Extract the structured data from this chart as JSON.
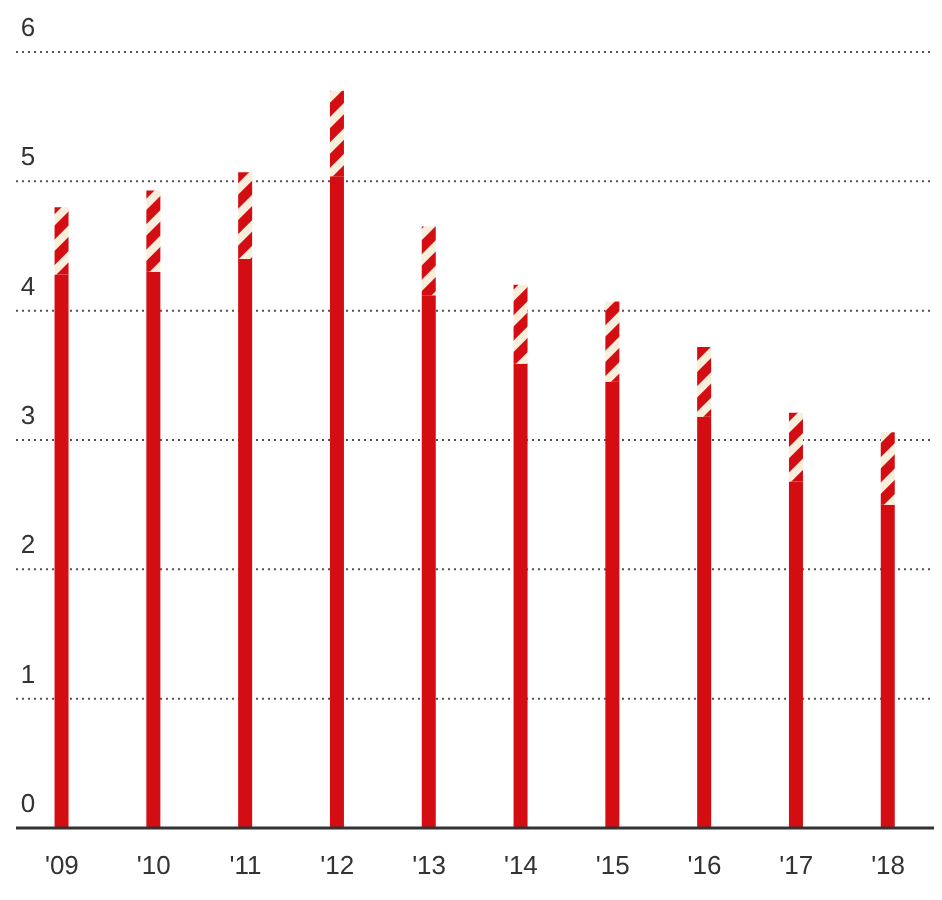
{
  "chart_data": {
    "type": "bar",
    "stacked": true,
    "categories": [
      "'09",
      "'10",
      "'11",
      "'12",
      "'13",
      "'14",
      "'15",
      "'16",
      "'17",
      "'18"
    ],
    "series": [
      {
        "color": "#d40d12",
        "values": [
          4.28,
          4.3,
          4.4,
          5.04,
          4.12,
          3.59,
          3.45,
          3.18,
          2.68,
          2.5
        ]
      },
      {
        "color": "#d40d12",
        "values": [
          0.52,
          0.63,
          0.67,
          0.66,
          0.53,
          0.61,
          0.62,
          0.54,
          0.53,
          0.56
        ]
      }
    ],
    "ylim": [
      0,
      6
    ],
    "yticks": [
      0,
      1,
      2,
      3,
      4,
      5,
      6
    ],
    "grid": "y",
    "legend": false
  }
}
